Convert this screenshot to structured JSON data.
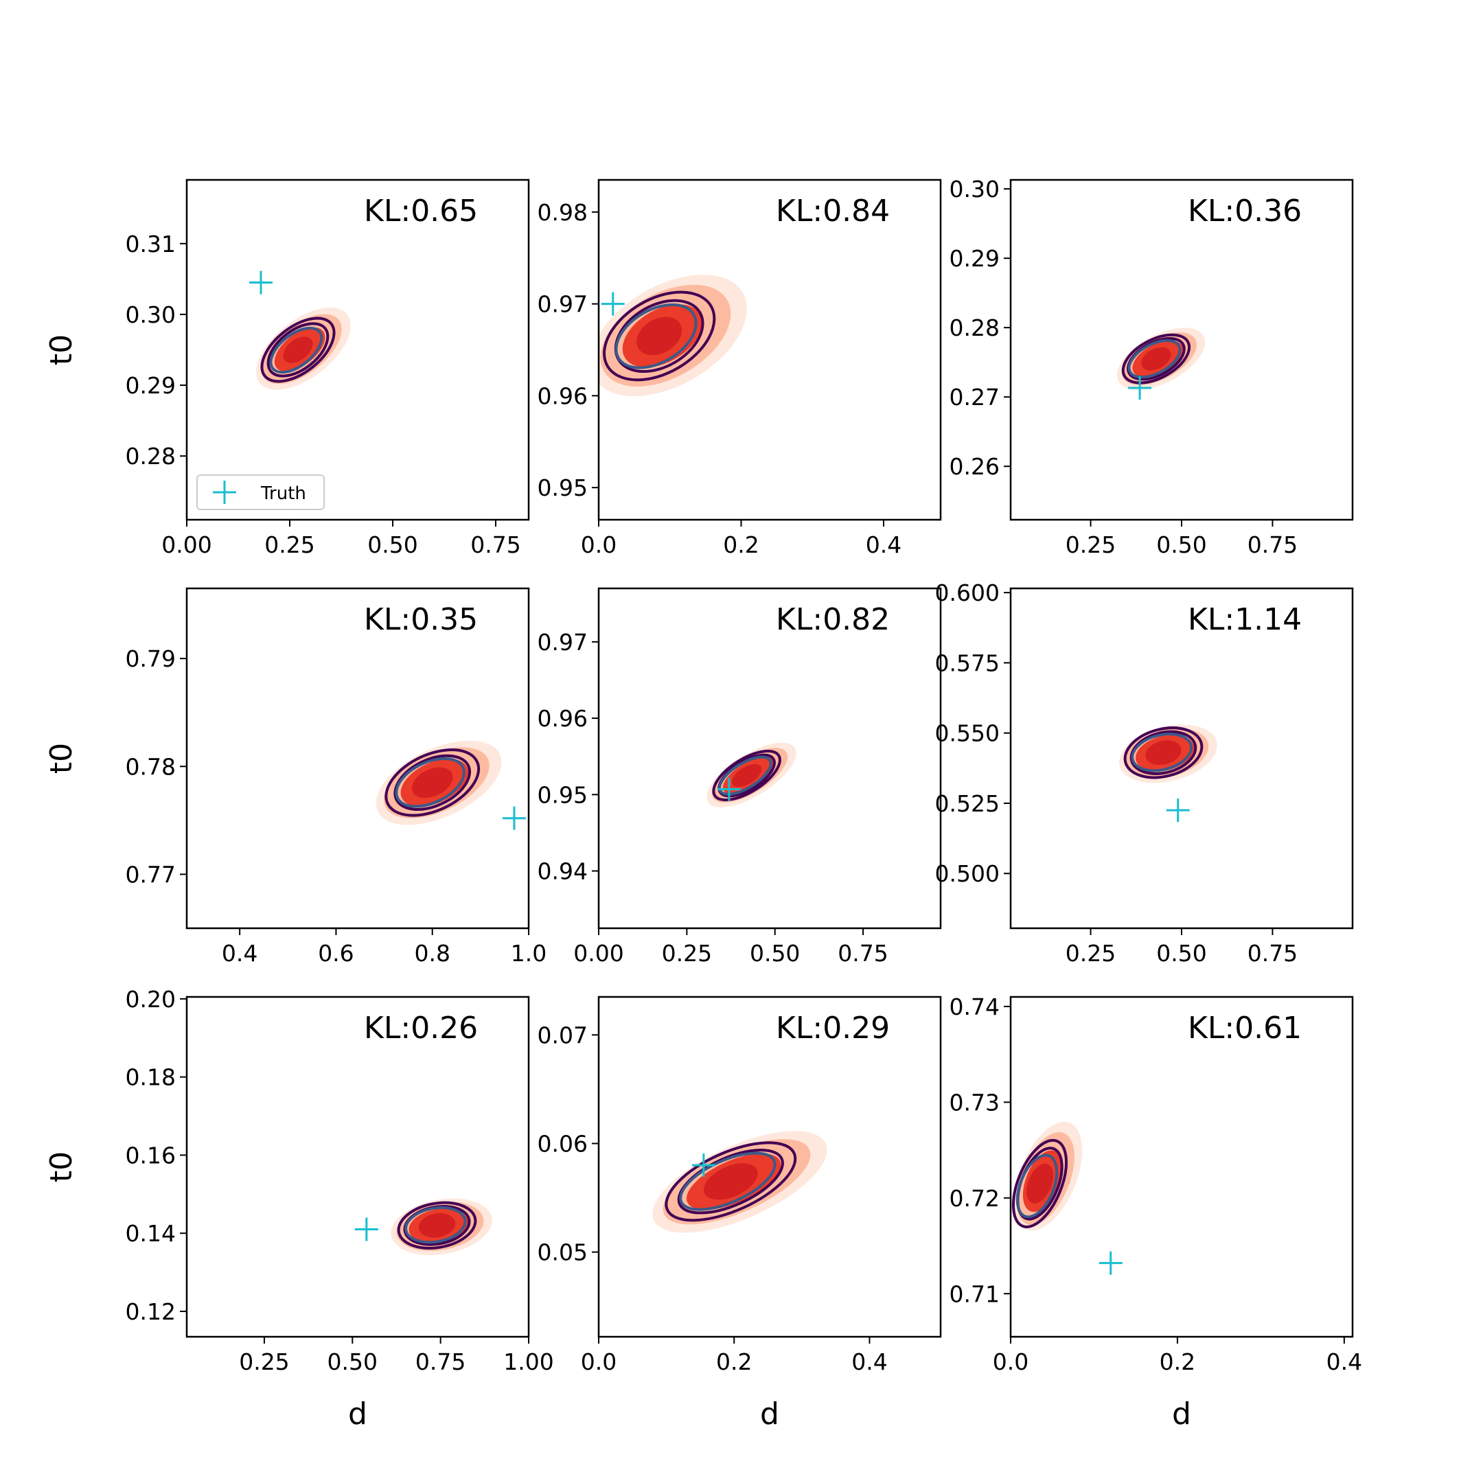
{
  "figure": {
    "legend_marker_label": "Truth",
    "ylabel": "t0",
    "xlabel": "d"
  },
  "chart_data": [
    {
      "type": "contour",
      "kl_label": "KL:0.65",
      "xlim": [
        0.0,
        0.83
      ],
      "ylim": [
        0.271,
        0.319
      ],
      "xticks": [
        0.0,
        0.25,
        0.5,
        0.75
      ],
      "xtick_labels": [
        "0.00",
        "0.25",
        "0.50",
        "0.75"
      ],
      "yticks": [
        0.28,
        0.29,
        0.3,
        0.31
      ],
      "ytick_labels": [
        "0.28",
        "0.29",
        "0.30",
        "0.31"
      ],
      "truth": [
        0.18,
        0.3045
      ],
      "center": [
        0.27,
        0.295
      ],
      "angle": -38,
      "rmaj": [
        0.082,
        0.144,
        0.23,
        0.27,
        0.168,
        0.205
      ],
      "rmin": [
        0.05,
        0.076,
        0.118,
        0.14,
        0.094,
        0.11
      ],
      "show_ylabel": true,
      "show_xlabel": false,
      "show_legend": true
    },
    {
      "type": "contour",
      "kl_label": "KL:0.84",
      "xlim": [
        0.0,
        0.48
      ],
      "ylim": [
        0.9465,
        0.9835
      ],
      "xticks": [
        0.0,
        0.2,
        0.4
      ],
      "xtick_labels": [
        "0.0",
        "0.2",
        "0.4"
      ],
      "yticks": [
        0.95,
        0.96,
        0.97,
        0.98
      ],
      "ytick_labels": [
        "0.95",
        "0.96",
        "0.97",
        "0.98"
      ],
      "truth": [
        0.02,
        0.97
      ],
      "center": [
        0.085,
        0.9665
      ],
      "angle": -30,
      "rmaj": [
        0.068,
        0.122,
        0.2,
        0.24,
        0.132,
        0.168
      ],
      "rmin": [
        0.048,
        0.074,
        0.118,
        0.14,
        0.086,
        0.104
      ],
      "show_ylabel": false,
      "show_xlabel": false,
      "show_legend": false
    },
    {
      "type": "contour",
      "kl_label": "KL:0.36",
      "xlim": [
        0.03,
        0.97
      ],
      "ylim": [
        0.2523,
        0.3013
      ],
      "xticks": [
        0.25,
        0.5,
        0.75
      ],
      "xtick_labels": [
        "0.25",
        "0.50",
        "0.75"
      ],
      "yticks": [
        0.26,
        0.27,
        0.28,
        0.29,
        0.3
      ],
      "ytick_labels": [
        "0.26",
        "0.27",
        "0.28",
        "0.29",
        "0.30"
      ],
      "truth": [
        0.385,
        0.2713
      ],
      "center": [
        0.43,
        0.2755
      ],
      "angle": -28,
      "rmaj": [
        0.088,
        0.152,
        0.225,
        0.265,
        0.168,
        0.198
      ],
      "rmin": [
        0.055,
        0.08,
        0.112,
        0.132,
        0.09,
        0.106
      ],
      "show_ylabel": false,
      "show_xlabel": false,
      "show_legend": false
    },
    {
      "type": "contour",
      "kl_label": "KL:0.35",
      "xlim": [
        0.29,
        1.0
      ],
      "ylim": [
        0.765,
        0.7965
      ],
      "xticks": [
        0.4,
        0.6,
        0.8,
        1.0
      ],
      "xtick_labels": [
        "0.4",
        "0.6",
        "0.8",
        "1.0"
      ],
      "yticks": [
        0.77,
        0.78,
        0.79
      ],
      "ytick_labels": [
        "0.77",
        "0.78",
        "0.79"
      ],
      "truth": [
        0.97,
        0.7752
      ],
      "center": [
        0.8,
        0.7785
      ],
      "angle": -25,
      "rmaj": [
        0.09,
        0.15,
        0.235,
        0.28,
        0.165,
        0.205
      ],
      "rmin": [
        0.056,
        0.084,
        0.12,
        0.142,
        0.096,
        0.116
      ],
      "show_ylabel": true,
      "show_xlabel": false,
      "show_legend": false
    },
    {
      "type": "contour",
      "kl_label": "KL:0.82",
      "xlim": [
        0.0,
        0.97
      ],
      "ylim": [
        0.9325,
        0.977
      ],
      "xticks": [
        0.0,
        0.25,
        0.5,
        0.75
      ],
      "xtick_labels": [
        "0.00",
        "0.25",
        "0.50",
        "0.75"
      ],
      "yticks": [
        0.94,
        0.95,
        0.96,
        0.97
      ],
      "ytick_labels": [
        "0.94",
        "0.95",
        "0.96",
        "0.97"
      ],
      "truth": [
        0.37,
        0.9507
      ],
      "center": [
        0.42,
        0.9525
      ],
      "angle": -32,
      "rmaj": [
        0.095,
        0.165,
        0.245,
        0.29,
        0.178,
        0.214
      ],
      "rmin": [
        0.048,
        0.07,
        0.1,
        0.118,
        0.08,
        0.094
      ],
      "show_ylabel": false,
      "show_xlabel": false,
      "show_legend": false
    },
    {
      "type": "contour",
      "kl_label": "KL:1.14",
      "xlim": [
        0.03,
        0.97
      ],
      "ylim": [
        0.4805,
        0.6015
      ],
      "xticks": [
        0.25,
        0.5,
        0.75
      ],
      "xtick_labels": [
        "0.25",
        "0.50",
        "0.75"
      ],
      "yticks": [
        0.5,
        0.525,
        0.55,
        0.575,
        0.6
      ],
      "ytick_labels": [
        "0.500",
        "0.525",
        "0.550",
        "0.575",
        "0.600"
      ],
      "truth": [
        0.49,
        0.5225
      ],
      "center": [
        0.45,
        0.543
      ],
      "angle": -14,
      "rmaj": [
        0.1,
        0.165,
        0.235,
        0.275,
        0.18,
        0.215
      ],
      "rmin": [
        0.065,
        0.095,
        0.13,
        0.15,
        0.11,
        0.13
      ],
      "show_ylabel": false,
      "show_xlabel": false,
      "show_legend": false
    },
    {
      "type": "contour",
      "kl_label": "KL:0.26",
      "xlim": [
        0.03,
        1.0
      ],
      "ylim": [
        0.1135,
        0.2005
      ],
      "xticks": [
        0.25,
        0.5,
        0.75,
        1.0
      ],
      "xtick_labels": [
        "0.25",
        "0.50",
        "0.75",
        "1.00"
      ],
      "yticks": [
        0.12,
        0.14,
        0.16,
        0.18,
        0.2
      ],
      "ytick_labels": [
        "0.12",
        "0.14",
        "0.16",
        "0.18",
        "0.20"
      ],
      "truth": [
        0.54,
        0.141
      ],
      "center": [
        0.74,
        0.142
      ],
      "angle": -10,
      "rmaj": [
        0.105,
        0.17,
        0.25,
        0.29,
        0.185,
        0.22
      ],
      "rmin": [
        0.068,
        0.095,
        0.135,
        0.155,
        0.105,
        0.125
      ],
      "show_ylabel": true,
      "show_xlabel": true,
      "show_legend": false
    },
    {
      "type": "contour",
      "kl_label": "KL:0.29",
      "xlim": [
        0.0,
        0.505
      ],
      "ylim": [
        0.0422,
        0.0735
      ],
      "xticks": [
        0.0,
        0.2,
        0.4
      ],
      "xtick_labels": [
        "0.0",
        "0.2",
        "0.4"
      ],
      "yticks": [
        0.05,
        0.06,
        0.07
      ],
      "ytick_labels": [
        "0.05",
        "0.06",
        "0.07"
      ],
      "truth": [
        0.155,
        0.058
      ],
      "center": [
        0.195,
        0.0565
      ],
      "angle": -24,
      "rmaj": [
        0.085,
        0.15,
        0.235,
        0.278,
        0.165,
        0.205
      ],
      "rmin": [
        0.045,
        0.062,
        0.09,
        0.108,
        0.07,
        0.086
      ],
      "show_ylabel": false,
      "show_xlabel": true,
      "show_legend": false
    },
    {
      "type": "contour",
      "kl_label": "KL:0.61",
      "xlim": [
        0.0,
        0.41
      ],
      "ylim": [
        0.7055,
        0.741
      ],
      "xticks": [
        0.0,
        0.2,
        0.4
      ],
      "xtick_labels": [
        "0.0",
        "0.2",
        "0.4"
      ],
      "yticks": [
        0.71,
        0.72,
        0.73,
        0.74
      ],
      "ytick_labels": [
        "0.71",
        "0.72",
        "0.73",
        "0.74"
      ],
      "truth": [
        0.12,
        0.7132
      ],
      "center": [
        0.035,
        0.7215
      ],
      "angle": -68,
      "rmaj": [
        0.05,
        0.078,
        0.118,
        0.138,
        0.09,
        0.11
      ],
      "rmin": [
        0.028,
        0.04,
        0.058,
        0.068,
        0.044,
        0.052
      ],
      "show_ylabel": false,
      "show_xlabel": true,
      "show_legend": false
    }
  ],
  "colors": {
    "fill_outer": "#fee8dd",
    "fill_mid": "#fcbba1",
    "fill_inner": "#ea3b2b",
    "fill_core": "#d42020",
    "contour_outer": "#440154",
    "contour_inner": "#3b5a8a",
    "truth_marker": "#17becf"
  }
}
